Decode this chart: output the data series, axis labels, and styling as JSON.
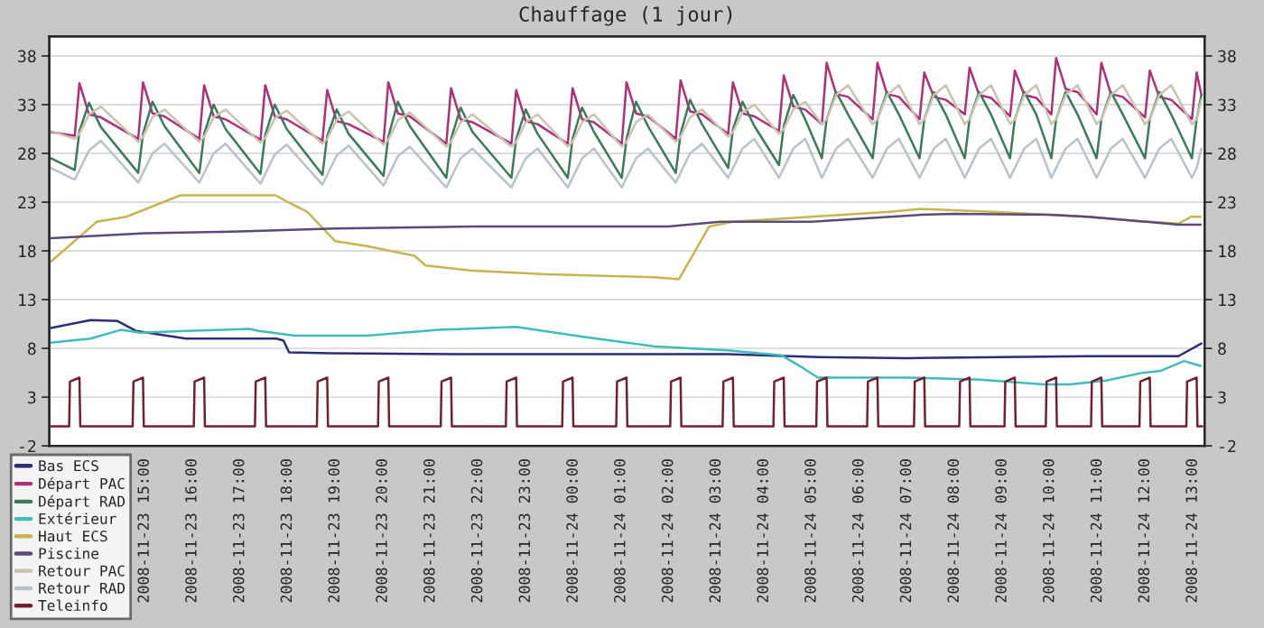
{
  "chart_data": {
    "type": "line",
    "title": "Chauffage (1 jour)",
    "xlim": [
      "2008-11-23T13:00",
      "2008-11-24T13:15"
    ],
    "xticks": [
      {
        "value": "2008-11-23T15:00",
        "label": "2008-11-23 15:00"
      },
      {
        "value": "2008-11-23T16:00",
        "label": "2008-11-23 16:00"
      },
      {
        "value": "2008-11-23T17:00",
        "label": "2008-11-23 17:00"
      },
      {
        "value": "2008-11-23T18:00",
        "label": "2008-11-23 18:00"
      },
      {
        "value": "2008-11-23T19:00",
        "label": "2008-11-23 19:00"
      },
      {
        "value": "2008-11-23T20:00",
        "label": "2008-11-23 20:00"
      },
      {
        "value": "2008-11-23T21:00",
        "label": "2008-11-23 21:00"
      },
      {
        "value": "2008-11-23T22:00",
        "label": "2008-11-23 22:00"
      },
      {
        "value": "2008-11-23T23:00",
        "label": "2008-11-23 23:00"
      },
      {
        "value": "2008-11-24T00:00",
        "label": "2008-11-24 00:00"
      },
      {
        "value": "2008-11-24T01:00",
        "label": "2008-11-24 01:00"
      },
      {
        "value": "2008-11-24T02:00",
        "label": "2008-11-24 02:00"
      },
      {
        "value": "2008-11-24T03:00",
        "label": "2008-11-24 03:00"
      },
      {
        "value": "2008-11-24T04:00",
        "label": "2008-11-24 04:00"
      },
      {
        "value": "2008-11-24T05:00",
        "label": "2008-11-24 05:00"
      },
      {
        "value": "2008-11-24T06:00",
        "label": "2008-11-24 06:00"
      },
      {
        "value": "2008-11-24T07:00",
        "label": "2008-11-24 07:00"
      },
      {
        "value": "2008-11-24T08:00",
        "label": "2008-11-24 08:00"
      },
      {
        "value": "2008-11-24T09:00",
        "label": "2008-11-24 09:00"
      },
      {
        "value": "2008-11-24T10:00",
        "label": "2008-11-24 10:00"
      },
      {
        "value": "2008-11-24T11:00",
        "label": "2008-11-24 11:00"
      },
      {
        "value": "2008-11-24T12:00",
        "label": "2008-11-24 12:00"
      },
      {
        "value": "2008-11-24T13:00",
        "label": "2008-11-24 13:00"
      }
    ],
    "ylim": [
      -2,
      40
    ],
    "yticks": [
      -2,
      3,
      8,
      13,
      18,
      23,
      28,
      33,
      38
    ],
    "y2lim": [
      -2,
      40
    ],
    "y2ticks": [
      -2,
      3,
      8,
      13,
      18,
      23,
      28,
      33,
      38
    ],
    "grid": "y",
    "legend": "bottom left",
    "x": [
      "2008-11-23T13:02",
      "2008-11-23T13:32",
      "2008-11-23T13:38",
      "2008-11-23T13:50",
      "2008-11-23T14:05",
      "2008-11-23T14:52",
      "2008-11-23T14:58",
      "2008-11-23T15:10",
      "2008-11-23T15:25",
      "2008-11-23T16:09",
      "2008-11-23T16:15",
      "2008-11-23T16:27",
      "2008-11-23T16:42",
      "2008-11-23T17:26",
      "2008-11-23T17:32",
      "2008-11-23T17:44",
      "2008-11-23T17:59",
      "2008-11-23T18:44",
      "2008-11-23T18:50",
      "2008-11-23T19:02",
      "2008-11-23T19:17",
      "2008-11-23T20:01",
      "2008-11-23T20:07",
      "2008-11-23T20:19",
      "2008-11-23T20:34",
      "2008-11-23T21:20",
      "2008-11-23T21:26",
      "2008-11-23T21:38",
      "2008-11-23T21:53",
      "2008-11-23T22:42",
      "2008-11-23T22:48",
      "2008-11-23T23:00",
      "2008-11-23T23:15",
      "2008-11-23T23:53",
      "2008-11-23T23:59",
      "2008-11-24T00:11",
      "2008-11-24T00:26",
      "2008-11-24T01:01",
      "2008-11-24T01:07",
      "2008-11-24T01:19",
      "2008-11-24T01:34",
      "2008-11-24T02:09",
      "2008-11-24T02:15",
      "2008-11-24T02:27",
      "2008-11-24T02:42",
      "2008-11-24T03:15",
      "2008-11-24T03:21",
      "2008-11-24T03:33",
      "2008-11-24T03:48",
      "2008-11-24T04:19",
      "2008-11-24T04:25",
      "2008-11-24T04:37",
      "2008-11-24T04:52",
      "2008-11-24T05:13",
      "2008-11-24T05:19",
      "2008-11-24T05:31",
      "2008-11-24T05:46",
      "2008-11-24T06:17",
      "2008-11-24T06:23",
      "2008-11-24T06:35",
      "2008-11-24T06:50",
      "2008-11-24T07:16",
      "2008-11-24T07:22",
      "2008-11-24T07:34",
      "2008-11-24T07:49",
      "2008-11-24T08:13",
      "2008-11-24T08:19",
      "2008-11-24T08:31",
      "2008-11-24T08:46",
      "2008-11-24T09:10",
      "2008-11-24T09:16",
      "2008-11-24T09:28",
      "2008-11-24T09:43",
      "2008-11-24T10:02",
      "2008-11-24T10:08",
      "2008-11-24T10:20",
      "2008-11-24T10:35",
      "2008-11-24T10:59",
      "2008-11-24T11:05",
      "2008-11-24T11:17",
      "2008-11-24T11:32",
      "2008-11-24T12:00",
      "2008-11-24T12:06",
      "2008-11-24T12:18",
      "2008-11-24T12:33",
      "2008-11-24T12:59",
      "2008-11-24T13:05",
      "2008-11-24T13:11"
    ],
    "series": [
      {
        "name": "Bas ECS",
        "color": "#2e2e78",
        "x": [
          "2008-11-23T13:02",
          "2008-11-23T13:52",
          "2008-11-23T14:26",
          "2008-11-23T14:49",
          "2008-11-23T15:52",
          "2008-11-23T17:46",
          "2008-11-23T17:55",
          "2008-11-23T18:02",
          "2008-11-23T18:54",
          "2008-11-23T21:33",
          "2008-11-24T03:14",
          "2008-11-24T05:08",
          "2008-11-24T07:01",
          "2008-11-24T10:48",
          "2008-11-24T12:42",
          "2008-11-24T13:11"
        ],
        "values": [
          10.1,
          10.9,
          10.8,
          9.8,
          9.0,
          9.0,
          8.8,
          7.6,
          7.5,
          7.4,
          7.4,
          7.1,
          7.0,
          7.2,
          7.2,
          8.5
        ]
      },
      {
        "name": "Départ PAC",
        "color": "#b03078",
        "values": [
          30.2,
          29.8,
          35.2,
          32.0,
          31.7,
          29.5,
          35.3,
          32.1,
          31.8,
          29.5,
          35.0,
          31.8,
          31.5,
          29.4,
          35.0,
          31.8,
          31.5,
          29.3,
          34.5,
          31.3,
          31.0,
          29.2,
          35.3,
          32.1,
          31.8,
          29.0,
          34.7,
          31.5,
          31.2,
          29.0,
          34.5,
          31.3,
          31.0,
          29.0,
          34.7,
          31.5,
          31.2,
          29.0,
          35.3,
          32.1,
          31.8,
          29.5,
          35.5,
          32.3,
          32.0,
          30.0,
          35.3,
          32.1,
          31.8,
          30.3,
          36.0,
          32.8,
          32.5,
          31.0,
          37.3,
          34.1,
          33.8,
          31.5,
          37.3,
          34.1,
          33.8,
          31.5,
          36.3,
          33.8,
          33.5,
          32.0,
          36.8,
          34.0,
          33.7,
          31.8,
          36.5,
          34.0,
          33.7,
          32.0,
          37.8,
          34.6,
          34.3,
          32.0,
          37.3,
          34.1,
          33.8,
          31.7,
          36.5,
          33.8,
          33.5,
          31.5,
          36.3,
          34.0
        ]
      },
      {
        "name": "Départ RAD",
        "color": "#3c7a5c",
        "values": [
          27.5,
          26.3,
          30.3,
          33.2,
          30.7,
          26.0,
          30.0,
          33.3,
          30.8,
          26.0,
          30.0,
          33.0,
          30.5,
          25.9,
          29.9,
          33.0,
          30.5,
          25.8,
          29.8,
          32.5,
          30.0,
          25.7,
          29.7,
          33.3,
          30.8,
          25.5,
          29.5,
          32.7,
          30.2,
          25.5,
          29.5,
          32.5,
          30.0,
          25.5,
          29.5,
          32.7,
          30.2,
          25.5,
          29.5,
          33.3,
          30.8,
          26.0,
          30.0,
          33.5,
          31.0,
          26.5,
          30.5,
          33.3,
          30.8,
          26.8,
          30.8,
          34.0,
          31.5,
          27.5,
          31.5,
          34.3,
          32.0,
          27.5,
          31.5,
          34.3,
          32.0,
          27.5,
          31.5,
          34.3,
          32.0,
          27.5,
          31.5,
          34.3,
          32.0,
          27.5,
          31.5,
          34.3,
          32.0,
          27.5,
          31.5,
          34.3,
          32.0,
          27.5,
          31.5,
          34.3,
          32.0,
          27.5,
          31.5,
          34.3,
          32.0,
          27.5,
          31.5,
          34.0
        ]
      },
      {
        "name": "Extérieur",
        "color": "#40bcbc",
        "x": [
          "2008-11-23T13:02",
          "2008-11-23T13:52",
          "2008-11-23T14:30",
          "2008-11-23T14:55",
          "2008-11-23T15:52",
          "2008-11-23T17:12",
          "2008-11-23T17:24",
          "2008-11-23T18:09",
          "2008-11-23T19:40",
          "2008-11-23T21:10",
          "2008-11-23T22:48",
          "2008-11-24T00:12",
          "2008-11-24T01:43",
          "2008-11-24T03:14",
          "2008-11-24T04:22",
          "2008-11-24T04:45",
          "2008-11-24T05:08",
          "2008-11-24T07:01",
          "2008-11-24T08:32",
          "2008-11-24T09:52",
          "2008-11-24T10:26",
          "2008-11-24T11:11",
          "2008-11-24T11:57",
          "2008-11-24T12:20",
          "2008-11-24T12:49",
          "2008-11-24T13:10"
        ],
        "values": [
          8.6,
          9.0,
          9.9,
          9.6,
          9.8,
          10.0,
          9.8,
          9.3,
          9.3,
          9.9,
          10.2,
          9.2,
          8.2,
          7.8,
          7.3,
          6.2,
          5.0,
          5.0,
          4.8,
          4.3,
          4.3,
          4.7,
          5.5,
          5.7,
          6.7,
          6.2
        ]
      },
      {
        "name": "Haut ECS",
        "color": "#c8b450",
        "x": [
          "2008-11-23T13:02",
          "2008-11-23T14:00",
          "2008-11-23T14:37",
          "2008-11-23T15:45",
          "2008-11-23T17:45",
          "2008-11-23T18:01",
          "2008-11-23T18:25",
          "2008-11-23T19:00",
          "2008-11-23T19:40",
          "2008-11-23T20:40",
          "2008-11-23T20:54",
          "2008-11-23T21:50",
          "2008-11-23T23:26",
          "2008-11-24T01:43",
          "2008-11-24T02:13",
          "2008-11-24T02:51",
          "2008-11-24T03:21",
          "2008-11-24T06:38",
          "2008-11-24T07:17",
          "2008-11-24T08:48",
          "2008-11-24T10:48",
          "2008-11-24T12:04",
          "2008-11-24T12:42",
          "2008-11-24T12:58",
          "2008-11-24T13:10"
        ],
        "values": [
          16.9,
          21.0,
          21.5,
          23.7,
          23.7,
          23.0,
          22.0,
          19.0,
          18.5,
          17.5,
          16.5,
          16.0,
          15.6,
          15.3,
          15.1,
          20.5,
          21.0,
          22.0,
          22.3,
          22.0,
          21.5,
          21.0,
          20.8,
          21.5,
          21.5
        ]
      },
      {
        "name": "Piscine",
        "color": "#5c4a7c",
        "x": [
          "2008-11-23T13:02",
          "2008-11-23T15:00",
          "2008-11-23T17:00",
          "2008-11-23T19:00",
          "2008-11-23T22:00",
          "2008-11-24T02:00",
          "2008-11-24T03:05",
          "2008-11-24T05:00",
          "2008-11-24T07:17",
          "2008-11-24T08:00",
          "2008-11-24T10:00",
          "2008-11-24T10:48",
          "2008-11-24T12:00",
          "2008-11-24T12:42",
          "2008-11-24T13:10"
        ],
        "values": [
          19.3,
          19.8,
          20.0,
          20.3,
          20.5,
          20.5,
          21.0,
          21.0,
          21.7,
          21.8,
          21.7,
          21.5,
          21.0,
          20.7,
          20.7
        ]
      },
      {
        "name": "Retour PAC",
        "color": "#cac2b2",
        "values": [
          30.3,
          29.5,
          30.0,
          32.0,
          32.8,
          29.2,
          29.7,
          31.7,
          32.5,
          29.2,
          29.7,
          31.7,
          32.5,
          29.1,
          29.6,
          31.6,
          32.4,
          29.0,
          29.5,
          31.5,
          32.3,
          28.9,
          29.4,
          31.4,
          32.2,
          28.7,
          29.2,
          31.2,
          32.0,
          28.7,
          29.2,
          31.2,
          32.0,
          28.7,
          29.2,
          31.2,
          32.0,
          28.7,
          29.2,
          31.2,
          32.0,
          29.2,
          29.7,
          31.7,
          32.5,
          29.7,
          30.2,
          32.2,
          33.0,
          30.0,
          30.5,
          32.5,
          33.3,
          31.0,
          31.5,
          34.0,
          35.0,
          31.0,
          31.5,
          34.0,
          35.0,
          31.0,
          31.5,
          34.0,
          35.0,
          31.0,
          31.5,
          34.0,
          35.0,
          31.0,
          31.5,
          34.0,
          35.0,
          31.0,
          31.5,
          34.0,
          35.0,
          31.0,
          31.5,
          34.0,
          35.0,
          31.0,
          31.5,
          34.0,
          35.0,
          31.0,
          31.5,
          33.5
        ]
      },
      {
        "name": "Retour RAD",
        "color": "#b8c2c8",
        "values": [
          26.5,
          25.3,
          26.3,
          28.3,
          29.3,
          25.0,
          26.0,
          28.0,
          29.0,
          25.0,
          26.0,
          28.0,
          29.0,
          24.9,
          25.9,
          27.9,
          28.9,
          24.8,
          25.8,
          27.8,
          28.8,
          24.7,
          25.7,
          27.7,
          28.7,
          24.5,
          25.5,
          27.5,
          28.5,
          24.5,
          25.5,
          27.5,
          28.5,
          24.5,
          25.5,
          27.5,
          28.5,
          24.5,
          25.5,
          27.5,
          28.5,
          25.0,
          26.0,
          28.0,
          29.0,
          25.5,
          26.5,
          28.5,
          29.5,
          25.5,
          26.5,
          28.5,
          29.5,
          25.5,
          26.5,
          28.5,
          29.5,
          25.5,
          26.5,
          28.5,
          29.5,
          25.5,
          26.5,
          28.5,
          29.5,
          25.5,
          26.5,
          28.5,
          29.5,
          25.5,
          26.5,
          28.5,
          29.5,
          25.5,
          26.5,
          28.5,
          29.5,
          25.5,
          26.5,
          28.5,
          29.5,
          25.5,
          26.5,
          28.5,
          29.5,
          25.5,
          26.5,
          28.5
        ]
      },
      {
        "name": "Teleinfo",
        "color": "#722030",
        "x": [
          "2008-11-23T13:02",
          "2008-11-23T13:25",
          "2008-11-23T13:26",
          "2008-11-23T13:38",
          "2008-11-23T13:39",
          "2008-11-23T14:45",
          "2008-11-23T14:46",
          "2008-11-23T14:58",
          "2008-11-23T14:59",
          "2008-11-23T16:02",
          "2008-11-23T16:03",
          "2008-11-23T16:15",
          "2008-11-23T16:16",
          "2008-11-23T17:19",
          "2008-11-23T17:20",
          "2008-11-23T17:32",
          "2008-11-23T17:33",
          "2008-11-23T18:37",
          "2008-11-23T18:38",
          "2008-11-23T18:50",
          "2008-11-23T18:51",
          "2008-11-23T19:54",
          "2008-11-23T19:55",
          "2008-11-23T20:07",
          "2008-11-23T20:08",
          "2008-11-23T21:13",
          "2008-11-23T21:14",
          "2008-11-23T21:26",
          "2008-11-23T21:27",
          "2008-11-23T22:35",
          "2008-11-23T22:36",
          "2008-11-23T22:48",
          "2008-11-23T22:49",
          "2008-11-23T23:46",
          "2008-11-23T23:47",
          "2008-11-23T23:59",
          "2008-11-24T00:00",
          "2008-11-24T00:54",
          "2008-11-24T00:55",
          "2008-11-24T01:07",
          "2008-11-24T01:08",
          "2008-11-24T02:02",
          "2008-11-24T02:03",
          "2008-11-24T02:15",
          "2008-11-24T02:16",
          "2008-11-24T03:08",
          "2008-11-24T03:09",
          "2008-11-24T03:21",
          "2008-11-24T03:22",
          "2008-11-24T04:12",
          "2008-11-24T04:13",
          "2008-11-24T04:25",
          "2008-11-24T04:26",
          "2008-11-24T05:06",
          "2008-11-24T05:07",
          "2008-11-24T05:19",
          "2008-11-24T05:20",
          "2008-11-24T06:10",
          "2008-11-24T06:11",
          "2008-11-24T06:23",
          "2008-11-24T06:24",
          "2008-11-24T07:09",
          "2008-11-24T07:10",
          "2008-11-24T07:22",
          "2008-11-24T07:23",
          "2008-11-24T08:06",
          "2008-11-24T08:07",
          "2008-11-24T08:19",
          "2008-11-24T08:20",
          "2008-11-24T09:03",
          "2008-11-24T09:04",
          "2008-11-24T09:16",
          "2008-11-24T09:17",
          "2008-11-24T09:55",
          "2008-11-24T09:56",
          "2008-11-24T10:08",
          "2008-11-24T10:09",
          "2008-11-24T10:52",
          "2008-11-24T10:53",
          "2008-11-24T11:05",
          "2008-11-24T11:06",
          "2008-11-24T11:53",
          "2008-11-24T11:54",
          "2008-11-24T12:06",
          "2008-11-24T12:07",
          "2008-11-24T12:52",
          "2008-11-24T12:53",
          "2008-11-24T13:05",
          "2008-11-24T13:06",
          "2008-11-24T13:12"
        ],
        "values": [
          0,
          0,
          4.6,
          5,
          0,
          0,
          4.6,
          5,
          0,
          0,
          4.6,
          5,
          0,
          0,
          4.6,
          5,
          0,
          0,
          4.6,
          5,
          0,
          0,
          4.6,
          5,
          0,
          0,
          4.6,
          5,
          0,
          0,
          4.6,
          5,
          0,
          0,
          4.6,
          5,
          0,
          0,
          4.6,
          5,
          0,
          0,
          4.6,
          5,
          0,
          0,
          4.6,
          5,
          0,
          0,
          4.6,
          5,
          0,
          0,
          4.6,
          5,
          0,
          0,
          4.6,
          5,
          0,
          0,
          4.6,
          5,
          0,
          0,
          4.6,
          5,
          0,
          0,
          4.6,
          5,
          0,
          0,
          4.6,
          5,
          0,
          0,
          4.6,
          5,
          0,
          0,
          4.6,
          5,
          0,
          0,
          4.6,
          5,
          0,
          0
        ]
      }
    ]
  }
}
